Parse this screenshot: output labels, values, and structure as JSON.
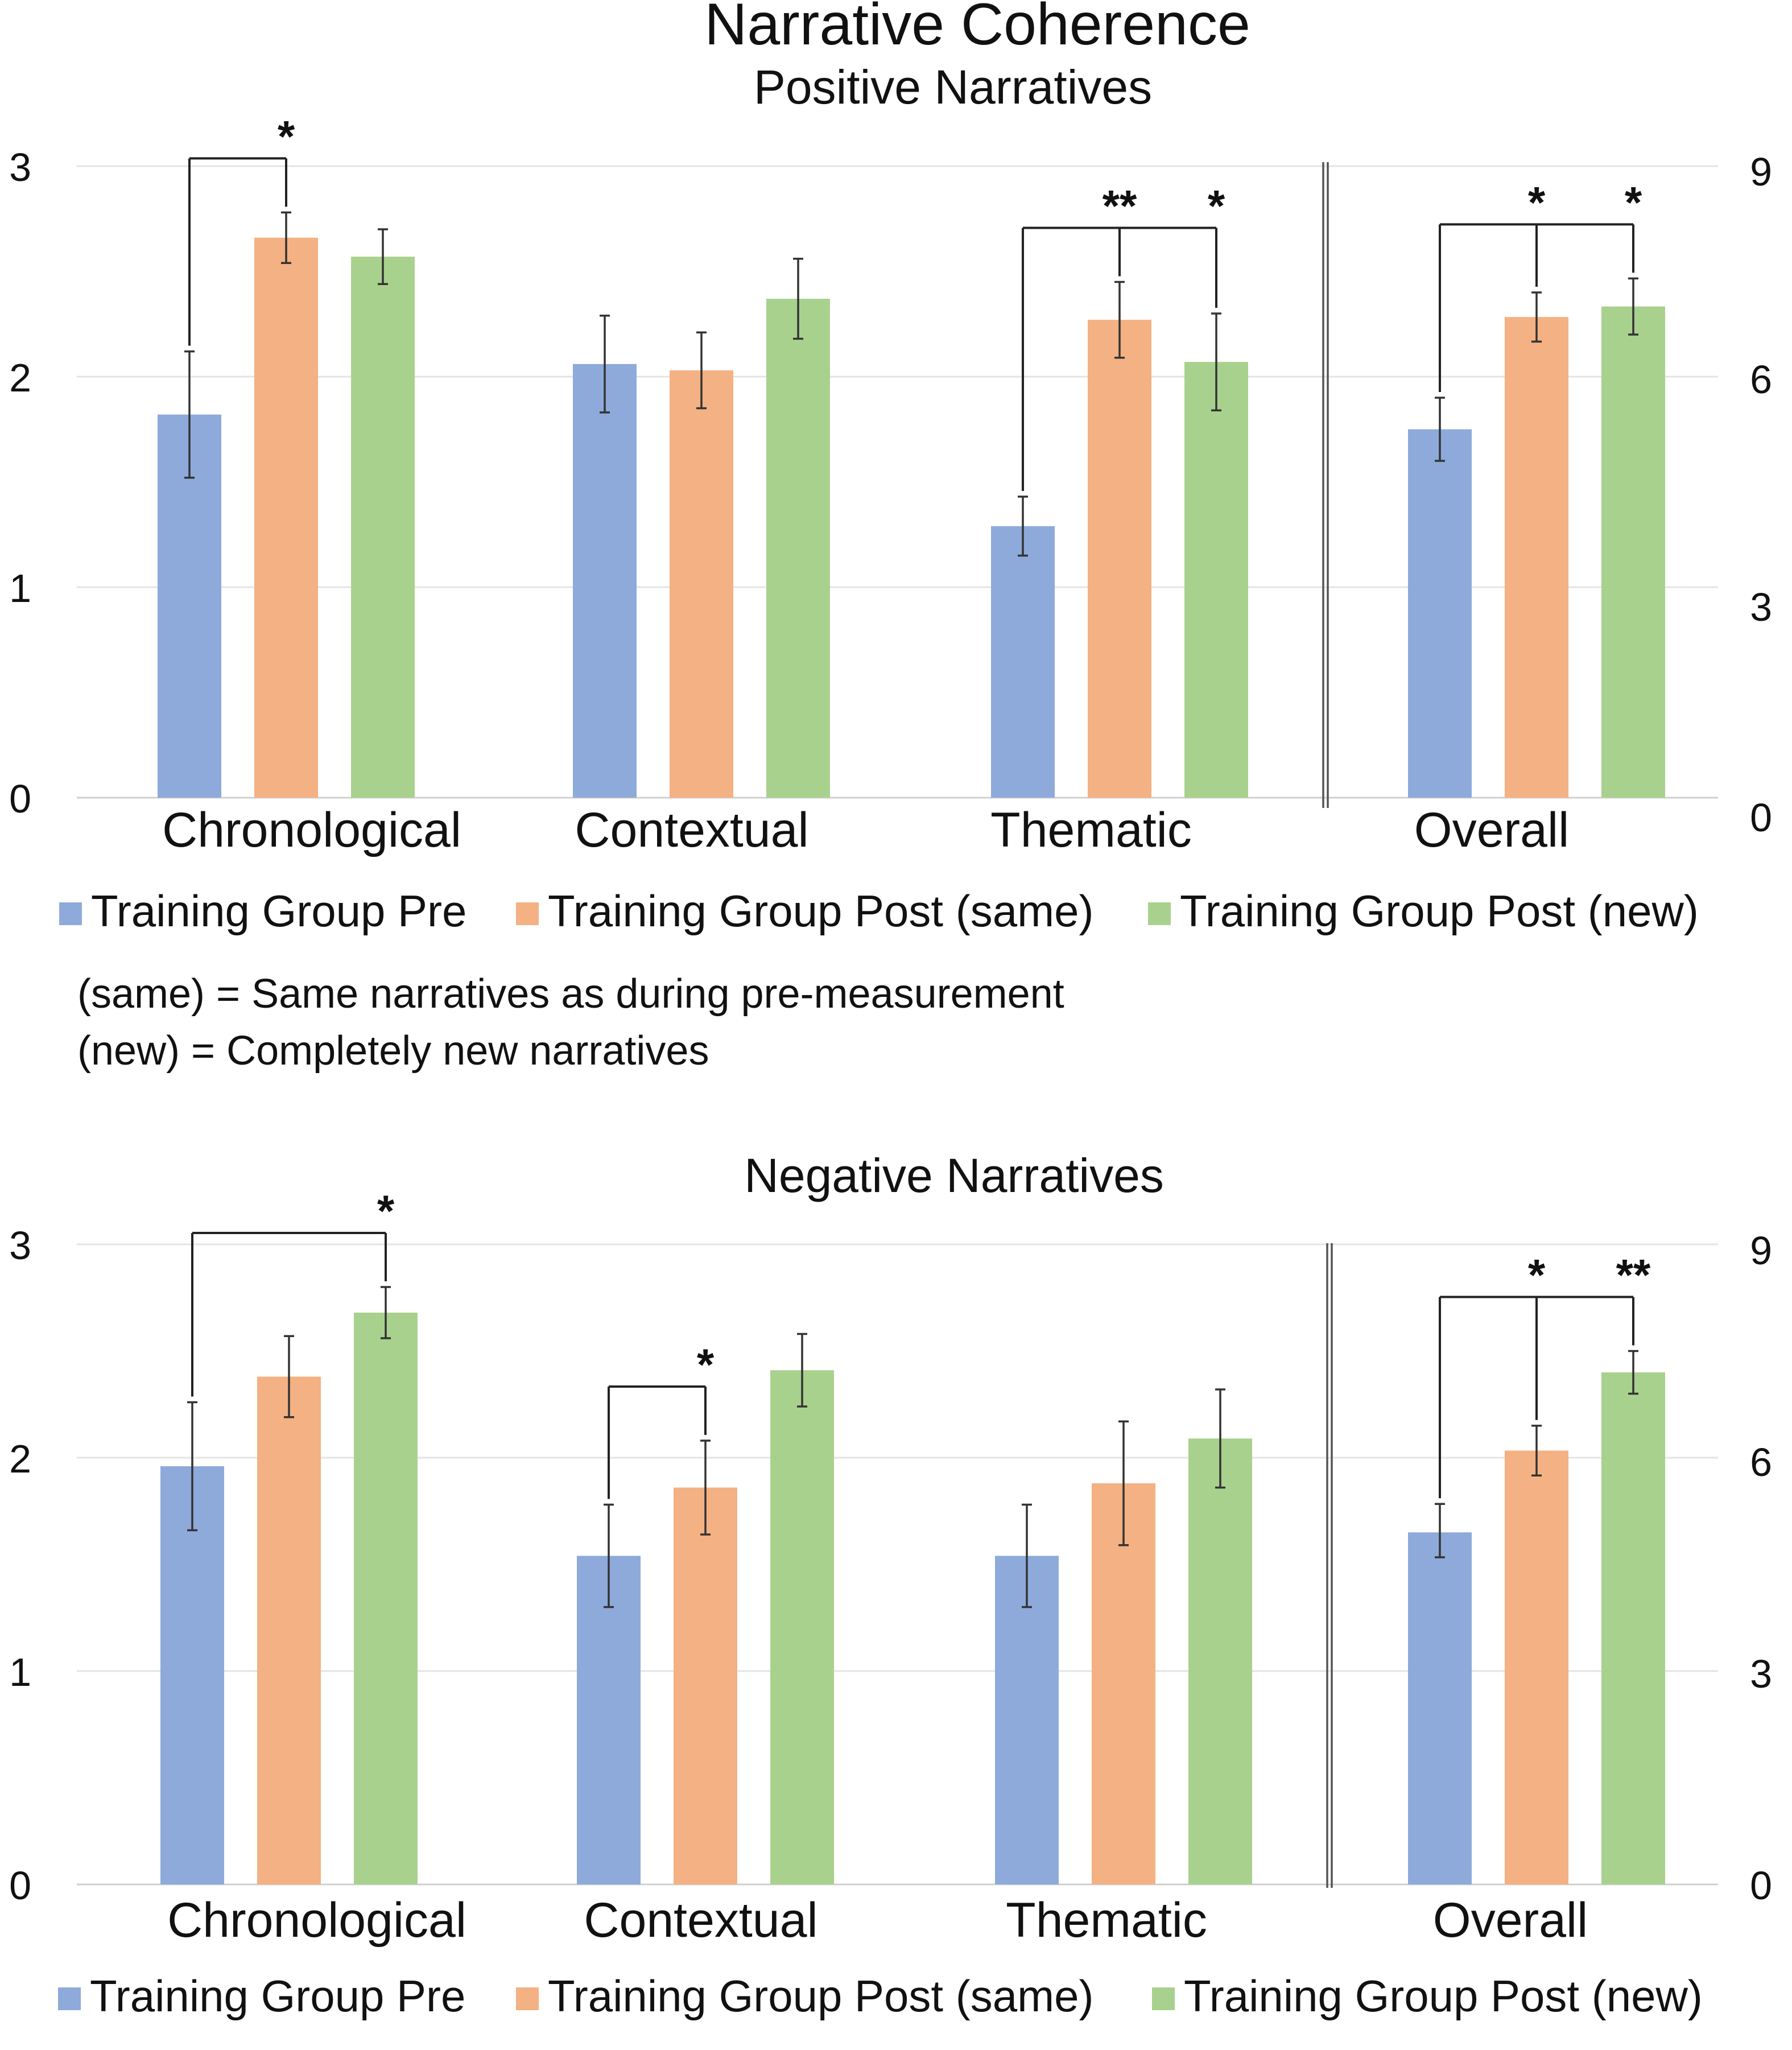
{
  "title": "Narrative Coherence",
  "colors": {
    "pre": "#8eaadb",
    "post_same": "#f4b183",
    "post_new": "#a9d18e"
  },
  "legend": [
    {
      "label": "Training Group Pre",
      "color": "#8eaadb"
    },
    {
      "label": "Training Group Post (same)",
      "color": "#f4b183"
    },
    {
      "label": "Training Group Post (new)",
      "color": "#a9d18e"
    }
  ],
  "notes": [
    "(same) = Same narratives as during pre-measurement",
    "(new) = Completely new narratives"
  ],
  "chart_data": [
    {
      "type": "bar",
      "title": "Positive Narratives",
      "categories": [
        "Chronological",
        "Contextual",
        "Thematic",
        "Overall"
      ],
      "y_left": {
        "ylim": [
          0,
          3
        ],
        "ticks": [
          "0",
          "1",
          "2",
          "3"
        ],
        "applies_to": [
          "Chronological",
          "Contextual",
          "Thematic"
        ]
      },
      "y_right": {
        "ylim": [
          0,
          9
        ],
        "ticks": [
          "0",
          "3",
          "6",
          "9"
        ],
        "applies_to": [
          "Overall"
        ]
      },
      "grid": true,
      "series": [
        {
          "name": "Training Group Pre",
          "values": [
            1.82,
            2.06,
            1.29,
            5.25
          ],
          "err_low": [
            1.52,
            1.83,
            1.15,
            4.8
          ],
          "err_high": [
            2.12,
            2.29,
            1.43,
            5.7
          ]
        },
        {
          "name": "Training Group Post (same)",
          "values": [
            2.66,
            2.03,
            2.27,
            6.85
          ],
          "err_low": [
            2.54,
            1.85,
            2.09,
            6.5
          ],
          "err_high": [
            2.78,
            2.21,
            2.45,
            7.2
          ]
        },
        {
          "name": "Training Group Post (new)",
          "values": [
            2.57,
            2.37,
            2.07,
            7.0
          ],
          "err_low": [
            2.44,
            2.18,
            1.84,
            6.6
          ],
          "err_high": [
            2.7,
            2.56,
            2.3,
            7.4
          ]
        }
      ],
      "significance": [
        {
          "category": "Chronological",
          "from": "Training Group Pre",
          "to": "Training Group Post (same)",
          "label": "*"
        },
        {
          "category": "Thematic",
          "from": "Training Group Pre",
          "to": "Training Group Post (same)",
          "label": "**"
        },
        {
          "category": "Thematic",
          "from": "Training Group Pre",
          "to": "Training Group Post (new)",
          "label": "*"
        },
        {
          "category": "Overall",
          "from": "Training Group Pre",
          "to": "Training Group Post (same)",
          "label": "*"
        },
        {
          "category": "Overall",
          "from": "Training Group Pre",
          "to": "Training Group Post (new)",
          "label": "*"
        }
      ]
    },
    {
      "type": "bar",
      "title": "Negative Narratives",
      "categories": [
        "Chronological",
        "Contextual",
        "Thematic",
        "Overall"
      ],
      "y_left": {
        "ylim": [
          0,
          3
        ],
        "ticks": [
          "0",
          "1",
          "2",
          "3"
        ],
        "applies_to": [
          "Chronological",
          "Contextual",
          "Thematic"
        ]
      },
      "y_right": {
        "ylim": [
          0,
          9
        ],
        "ticks": [
          "0",
          "3",
          "6",
          "9"
        ],
        "applies_to": [
          "Overall"
        ]
      },
      "grid": true,
      "series": [
        {
          "name": "Training Group Pre",
          "values": [
            1.96,
            1.54,
            1.54,
            4.95
          ],
          "err_low": [
            1.66,
            1.3,
            1.3,
            4.6
          ],
          "err_high": [
            2.26,
            1.78,
            1.78,
            5.35
          ]
        },
        {
          "name": "Training Group Post (same)",
          "values": [
            2.38,
            1.86,
            1.88,
            6.1
          ],
          "err_low": [
            2.19,
            1.64,
            1.59,
            5.75
          ],
          "err_high": [
            2.57,
            2.08,
            2.17,
            6.45
          ]
        },
        {
          "name": "Training Group Post (new)",
          "values": [
            2.68,
            2.41,
            2.09,
            7.2
          ],
          "err_low": [
            2.56,
            2.24,
            1.86,
            6.9
          ],
          "err_high": [
            2.8,
            2.58,
            2.32,
            7.5
          ]
        }
      ],
      "significance": [
        {
          "category": "Chronological",
          "from": "Training Group Pre",
          "to": "Training Group Post (new)",
          "label": "*"
        },
        {
          "category": "Contextual",
          "from": "Training Group Pre",
          "to": "Training Group Post (same)",
          "label": "*"
        },
        {
          "category": "Overall",
          "from": "Training Group Pre",
          "to": "Training Group Post (same)",
          "label": "*"
        },
        {
          "category": "Overall",
          "from": "Training Group Pre",
          "to": "Training Group Post (new)",
          "label": "**"
        }
      ]
    }
  ]
}
